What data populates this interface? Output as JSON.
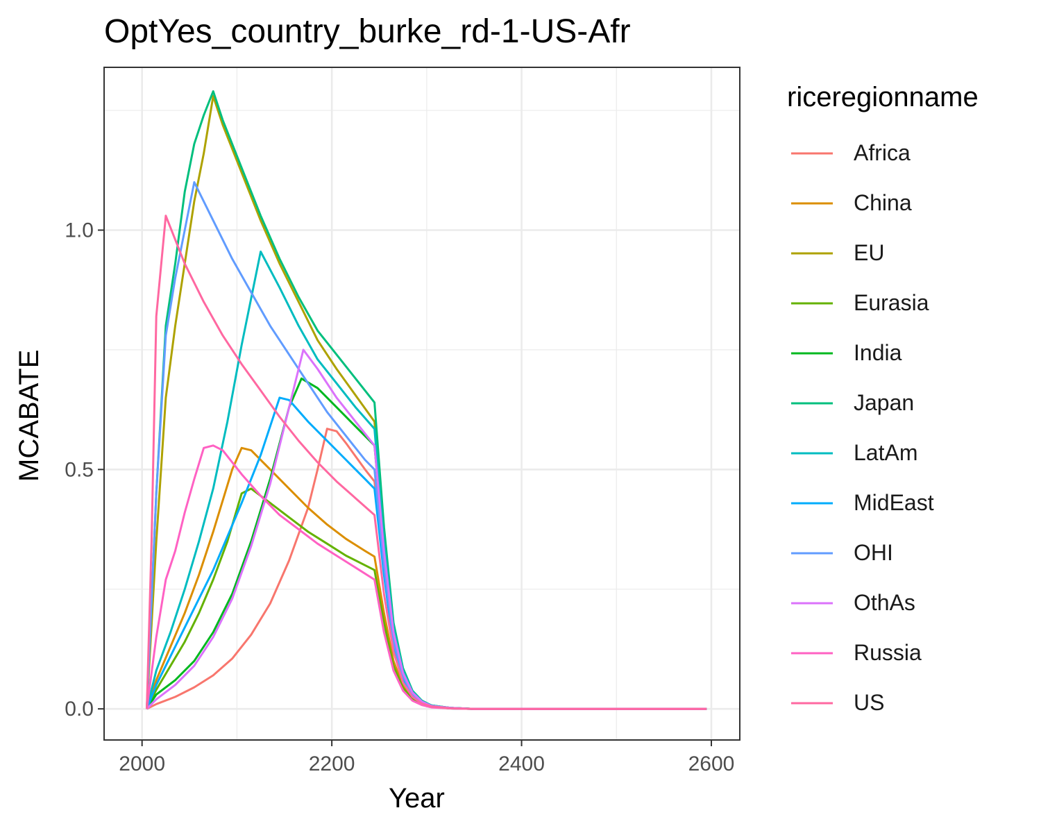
{
  "chart_data": {
    "type": "line",
    "title": "OptYes_country_burke_rd-1-US-Afr",
    "xlabel": "Year",
    "ylabel": "MCABATE",
    "xlim": [
      1960,
      2630
    ],
    "ylim": [
      -0.065,
      1.34
    ],
    "x_ticks": [
      2000,
      2200,
      2400,
      2600
    ],
    "y_ticks": [
      0.0,
      0.5,
      1.0
    ],
    "y_tick_labels": [
      "0.0",
      "0.5",
      "1.0"
    ],
    "grid": true,
    "legend": {
      "title": "riceregionname",
      "placement": "right"
    },
    "series": [
      {
        "name": "Africa",
        "color": "#F8766D",
        "points": [
          [
            2005,
            0
          ],
          [
            2015,
            0.01
          ],
          [
            2035,
            0.025
          ],
          [
            2055,
            0.045
          ],
          [
            2075,
            0.07
          ],
          [
            2095,
            0.105
          ],
          [
            2115,
            0.155
          ],
          [
            2135,
            0.22
          ],
          [
            2155,
            0.31
          ],
          [
            2175,
            0.42
          ],
          [
            2185,
            0.5
          ],
          [
            2195,
            0.585
          ],
          [
            2205,
            0.58
          ],
          [
            2215,
            0.555
          ],
          [
            2235,
            0.5
          ],
          [
            2245,
            0.475
          ],
          [
            2255,
            0.3
          ],
          [
            2265,
            0.14
          ],
          [
            2275,
            0.07
          ],
          [
            2285,
            0.033
          ],
          [
            2295,
            0.015
          ],
          [
            2305,
            0.007
          ],
          [
            2325,
            0.002
          ],
          [
            2350,
            0
          ],
          [
            2595,
            0
          ]
        ]
      },
      {
        "name": "China",
        "color": "#DB8E00",
        "points": [
          [
            2005,
            0
          ],
          [
            2015,
            0.06
          ],
          [
            2030,
            0.13
          ],
          [
            2045,
            0.2
          ],
          [
            2060,
            0.28
          ],
          [
            2075,
            0.37
          ],
          [
            2095,
            0.5
          ],
          [
            2105,
            0.545
          ],
          [
            2115,
            0.54
          ],
          [
            2135,
            0.5
          ],
          [
            2155,
            0.46
          ],
          [
            2175,
            0.42
          ],
          [
            2195,
            0.385
          ],
          [
            2215,
            0.355
          ],
          [
            2235,
            0.33
          ],
          [
            2245,
            0.318
          ],
          [
            2255,
            0.2
          ],
          [
            2265,
            0.1
          ],
          [
            2275,
            0.048
          ],
          [
            2285,
            0.022
          ],
          [
            2295,
            0.01
          ],
          [
            2305,
            0.004
          ],
          [
            2325,
            0.001
          ],
          [
            2350,
            0
          ],
          [
            2595,
            0
          ]
        ]
      },
      {
        "name": "EU",
        "color": "#AEA200",
        "points": [
          [
            2005,
            0
          ],
          [
            2015,
            0.35
          ],
          [
            2025,
            0.65
          ],
          [
            2035,
            0.8
          ],
          [
            2045,
            0.93
          ],
          [
            2055,
            1.06
          ],
          [
            2065,
            1.16
          ],
          [
            2075,
            1.28
          ],
          [
            2085,
            1.22
          ],
          [
            2105,
            1.12
          ],
          [
            2125,
            1.02
          ],
          [
            2145,
            0.93
          ],
          [
            2165,
            0.85
          ],
          [
            2185,
            0.77
          ],
          [
            2205,
            0.71
          ],
          [
            2225,
            0.655
          ],
          [
            2245,
            0.6
          ],
          [
            2255,
            0.36
          ],
          [
            2265,
            0.17
          ],
          [
            2275,
            0.08
          ],
          [
            2285,
            0.036
          ],
          [
            2295,
            0.016
          ],
          [
            2305,
            0.007
          ],
          [
            2325,
            0.002
          ],
          [
            2350,
            0
          ],
          [
            2595,
            0
          ]
        ]
      },
      {
        "name": "Eurasia",
        "color": "#64B200",
        "points": [
          [
            2005,
            0
          ],
          [
            2015,
            0.04
          ],
          [
            2030,
            0.09
          ],
          [
            2045,
            0.14
          ],
          [
            2060,
            0.2
          ],
          [
            2075,
            0.27
          ],
          [
            2090,
            0.35
          ],
          [
            2105,
            0.45
          ],
          [
            2115,
            0.46
          ],
          [
            2135,
            0.43
          ],
          [
            2155,
            0.4
          ],
          [
            2175,
            0.37
          ],
          [
            2195,
            0.345
          ],
          [
            2215,
            0.32
          ],
          [
            2235,
            0.3
          ],
          [
            2245,
            0.29
          ],
          [
            2255,
            0.18
          ],
          [
            2265,
            0.09
          ],
          [
            2275,
            0.044
          ],
          [
            2285,
            0.02
          ],
          [
            2295,
            0.009
          ],
          [
            2305,
            0.004
          ],
          [
            2325,
            0.001
          ],
          [
            2350,
            0
          ],
          [
            2595,
            0
          ]
        ]
      },
      {
        "name": "India",
        "color": "#00B81F",
        "points": [
          [
            2005,
            0
          ],
          [
            2015,
            0.03
          ],
          [
            2035,
            0.06
          ],
          [
            2055,
            0.1
          ],
          [
            2075,
            0.16
          ],
          [
            2095,
            0.24
          ],
          [
            2115,
            0.35
          ],
          [
            2135,
            0.48
          ],
          [
            2155,
            0.63
          ],
          [
            2168,
            0.69
          ],
          [
            2185,
            0.67
          ],
          [
            2205,
            0.63
          ],
          [
            2225,
            0.59
          ],
          [
            2245,
            0.55
          ],
          [
            2255,
            0.33
          ],
          [
            2265,
            0.16
          ],
          [
            2275,
            0.075
          ],
          [
            2285,
            0.034
          ],
          [
            2295,
            0.015
          ],
          [
            2305,
            0.006
          ],
          [
            2325,
            0.002
          ],
          [
            2350,
            0
          ],
          [
            2595,
            0
          ]
        ]
      },
      {
        "name": "Japan",
        "color": "#00BF7D",
        "points": [
          [
            2005,
            0
          ],
          [
            2015,
            0.45
          ],
          [
            2025,
            0.8
          ],
          [
            2035,
            0.93
          ],
          [
            2045,
            1.08
          ],
          [
            2055,
            1.18
          ],
          [
            2065,
            1.24
          ],
          [
            2075,
            1.29
          ],
          [
            2085,
            1.23
          ],
          [
            2105,
            1.13
          ],
          [
            2125,
            1.03
          ],
          [
            2145,
            0.94
          ],
          [
            2165,
            0.86
          ],
          [
            2185,
            0.79
          ],
          [
            2205,
            0.74
          ],
          [
            2225,
            0.69
          ],
          [
            2245,
            0.64
          ],
          [
            2255,
            0.38
          ],
          [
            2265,
            0.18
          ],
          [
            2275,
            0.085
          ],
          [
            2285,
            0.038
          ],
          [
            2295,
            0.017
          ],
          [
            2305,
            0.007
          ],
          [
            2325,
            0.002
          ],
          [
            2350,
            0
          ],
          [
            2595,
            0
          ]
        ]
      },
      {
        "name": "LatAm",
        "color": "#00BCC0",
        "points": [
          [
            2005,
            0
          ],
          [
            2015,
            0.08
          ],
          [
            2030,
            0.16
          ],
          [
            2045,
            0.25
          ],
          [
            2060,
            0.35
          ],
          [
            2075,
            0.46
          ],
          [
            2090,
            0.6
          ],
          [
            2105,
            0.76
          ],
          [
            2125,
            0.955
          ],
          [
            2145,
            0.88
          ],
          [
            2165,
            0.8
          ],
          [
            2185,
            0.73
          ],
          [
            2205,
            0.68
          ],
          [
            2225,
            0.63
          ],
          [
            2245,
            0.585
          ],
          [
            2255,
            0.35
          ],
          [
            2265,
            0.17
          ],
          [
            2275,
            0.08
          ],
          [
            2285,
            0.036
          ],
          [
            2295,
            0.016
          ],
          [
            2305,
            0.007
          ],
          [
            2325,
            0.002
          ],
          [
            2350,
            0
          ],
          [
            2595,
            0
          ]
        ]
      },
      {
        "name": "MidEast",
        "color": "#00ACFC",
        "points": [
          [
            2005,
            0
          ],
          [
            2015,
            0.05
          ],
          [
            2030,
            0.11
          ],
          [
            2045,
            0.17
          ],
          [
            2060,
            0.23
          ],
          [
            2075,
            0.29
          ],
          [
            2090,
            0.36
          ],
          [
            2105,
            0.43
          ],
          [
            2125,
            0.53
          ],
          [
            2145,
            0.65
          ],
          [
            2155,
            0.645
          ],
          [
            2175,
            0.6
          ],
          [
            2195,
            0.56
          ],
          [
            2215,
            0.52
          ],
          [
            2235,
            0.48
          ],
          [
            2245,
            0.46
          ],
          [
            2255,
            0.28
          ],
          [
            2265,
            0.13
          ],
          [
            2275,
            0.062
          ],
          [
            2285,
            0.028
          ],
          [
            2295,
            0.012
          ],
          [
            2305,
            0.005
          ],
          [
            2325,
            0.001
          ],
          [
            2350,
            0
          ],
          [
            2595,
            0
          ]
        ]
      },
      {
        "name": "OHI",
        "color": "#619CFF",
        "points": [
          [
            2005,
            0
          ],
          [
            2015,
            0.45
          ],
          [
            2025,
            0.78
          ],
          [
            2035,
            0.9
          ],
          [
            2045,
            1.0
          ],
          [
            2055,
            1.1
          ],
          [
            2075,
            1.02
          ],
          [
            2095,
            0.94
          ],
          [
            2115,
            0.87
          ],
          [
            2135,
            0.8
          ],
          [
            2155,
            0.74
          ],
          [
            2175,
            0.68
          ],
          [
            2195,
            0.62
          ],
          [
            2215,
            0.57
          ],
          [
            2235,
            0.52
          ],
          [
            2245,
            0.5
          ],
          [
            2255,
            0.3
          ],
          [
            2265,
            0.14
          ],
          [
            2275,
            0.068
          ],
          [
            2285,
            0.03
          ],
          [
            2295,
            0.013
          ],
          [
            2305,
            0.006
          ],
          [
            2325,
            0.001
          ],
          [
            2350,
            0
          ],
          [
            2595,
            0
          ]
        ]
      },
      {
        "name": "OthAs",
        "color": "#DB72FB",
        "points": [
          [
            2005,
            0
          ],
          [
            2015,
            0.02
          ],
          [
            2035,
            0.05
          ],
          [
            2055,
            0.09
          ],
          [
            2075,
            0.15
          ],
          [
            2095,
            0.23
          ],
          [
            2115,
            0.34
          ],
          [
            2135,
            0.47
          ],
          [
            2155,
            0.63
          ],
          [
            2170,
            0.75
          ],
          [
            2185,
            0.71
          ],
          [
            2205,
            0.65
          ],
          [
            2225,
            0.6
          ],
          [
            2245,
            0.55
          ],
          [
            2255,
            0.33
          ],
          [
            2265,
            0.16
          ],
          [
            2275,
            0.075
          ],
          [
            2285,
            0.034
          ],
          [
            2295,
            0.015
          ],
          [
            2305,
            0.006
          ],
          [
            2325,
            0.002
          ],
          [
            2350,
            0
          ],
          [
            2595,
            0
          ]
        ]
      },
      {
        "name": "Russia",
        "color": "#FF61C3",
        "points": [
          [
            2005,
            0
          ],
          [
            2015,
            0.15
          ],
          [
            2025,
            0.27
          ],
          [
            2035,
            0.33
          ],
          [
            2045,
            0.41
          ],
          [
            2055,
            0.48
          ],
          [
            2065,
            0.545
          ],
          [
            2075,
            0.55
          ],
          [
            2085,
            0.54
          ],
          [
            2105,
            0.49
          ],
          [
            2125,
            0.445
          ],
          [
            2145,
            0.405
          ],
          [
            2165,
            0.375
          ],
          [
            2185,
            0.345
          ],
          [
            2205,
            0.32
          ],
          [
            2225,
            0.295
          ],
          [
            2245,
            0.27
          ],
          [
            2255,
            0.16
          ],
          [
            2265,
            0.08
          ],
          [
            2275,
            0.038
          ],
          [
            2285,
            0.017
          ],
          [
            2295,
            0.008
          ],
          [
            2305,
            0.003
          ],
          [
            2325,
            0.001
          ],
          [
            2350,
            0
          ],
          [
            2595,
            0
          ]
        ]
      },
      {
        "name": "US",
        "color": "#FF68A1",
        "points": [
          [
            2005,
            0
          ],
          [
            2010,
            0.35
          ],
          [
            2015,
            0.82
          ],
          [
            2025,
            1.03
          ],
          [
            2045,
            0.93
          ],
          [
            2065,
            0.85
          ],
          [
            2085,
            0.78
          ],
          [
            2105,
            0.72
          ],
          [
            2125,
            0.665
          ],
          [
            2145,
            0.61
          ],
          [
            2165,
            0.56
          ],
          [
            2185,
            0.515
          ],
          [
            2205,
            0.475
          ],
          [
            2225,
            0.44
          ],
          [
            2245,
            0.405
          ],
          [
            2255,
            0.24
          ],
          [
            2265,
            0.12
          ],
          [
            2275,
            0.055
          ],
          [
            2285,
            0.025
          ],
          [
            2295,
            0.011
          ],
          [
            2305,
            0.005
          ],
          [
            2325,
            0.001
          ],
          [
            2350,
            0
          ],
          [
            2595,
            0
          ]
        ]
      }
    ]
  }
}
